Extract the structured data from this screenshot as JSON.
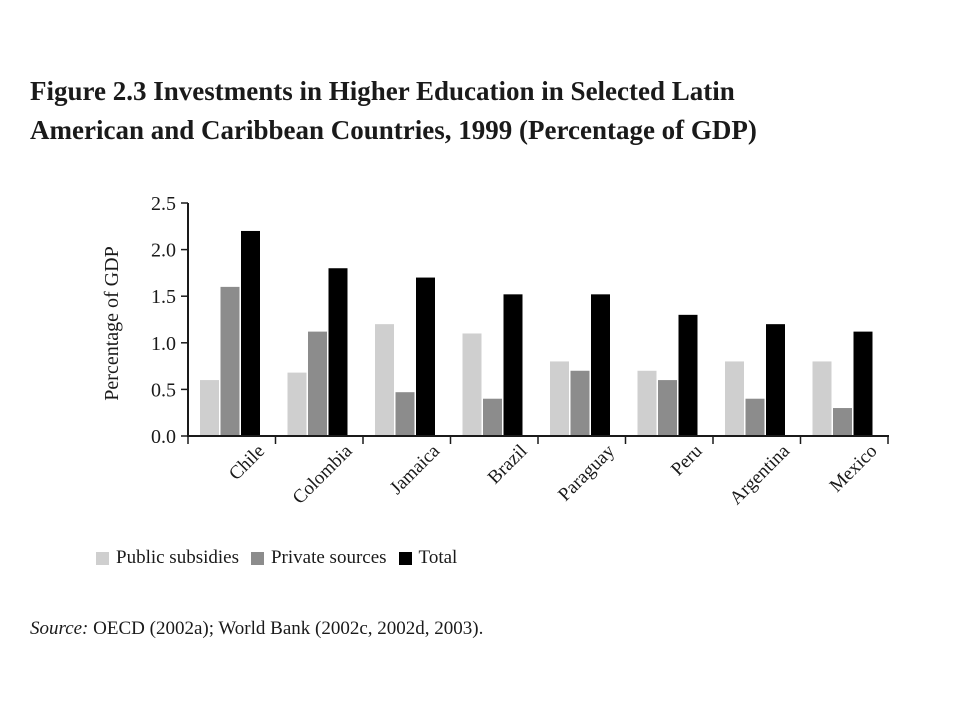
{
  "figure": {
    "title_line1": "Figure 2.3  Investments in Higher Education in Selected Latin",
    "title_line2": "American and Caribbean Countries, 1999 (Percentage of GDP)",
    "source_label": "Source:",
    "source_text": " OECD (2002a); World Bank (2002c, 2002d, 2003)."
  },
  "chart_data": {
    "type": "bar",
    "categories": [
      "Chile",
      "Colombia",
      "Jamaica",
      "Brazil",
      "Paraguay",
      "Peru",
      "Argentina",
      "Mexico"
    ],
    "series": [
      {
        "name": "Public subsidies",
        "color": "#cfcfcf",
        "values": [
          0.6,
          0.68,
          1.2,
          1.1,
          0.8,
          0.7,
          0.8,
          0.8
        ]
      },
      {
        "name": "Private sources",
        "color": "#8c8c8c",
        "values": [
          1.6,
          1.12,
          0.47,
          0.4,
          0.7,
          0.6,
          0.4,
          0.3
        ]
      },
      {
        "name": "Total",
        "color": "#000000",
        "values": [
          2.2,
          1.8,
          1.7,
          1.52,
          1.52,
          1.3,
          1.2,
          1.12
        ]
      }
    ],
    "ylabel": "Percentage of GDP",
    "xlabel": "",
    "ylim": [
      0,
      2.5
    ],
    "yticks": [
      0.0,
      0.5,
      1.0,
      1.5,
      2.0,
      2.5
    ],
    "ytick_labels": [
      "0.0",
      "0.5",
      "1.0",
      "1.5",
      "2.0",
      "2.5"
    ],
    "grid": false,
    "legend_position": "bottom-left"
  }
}
